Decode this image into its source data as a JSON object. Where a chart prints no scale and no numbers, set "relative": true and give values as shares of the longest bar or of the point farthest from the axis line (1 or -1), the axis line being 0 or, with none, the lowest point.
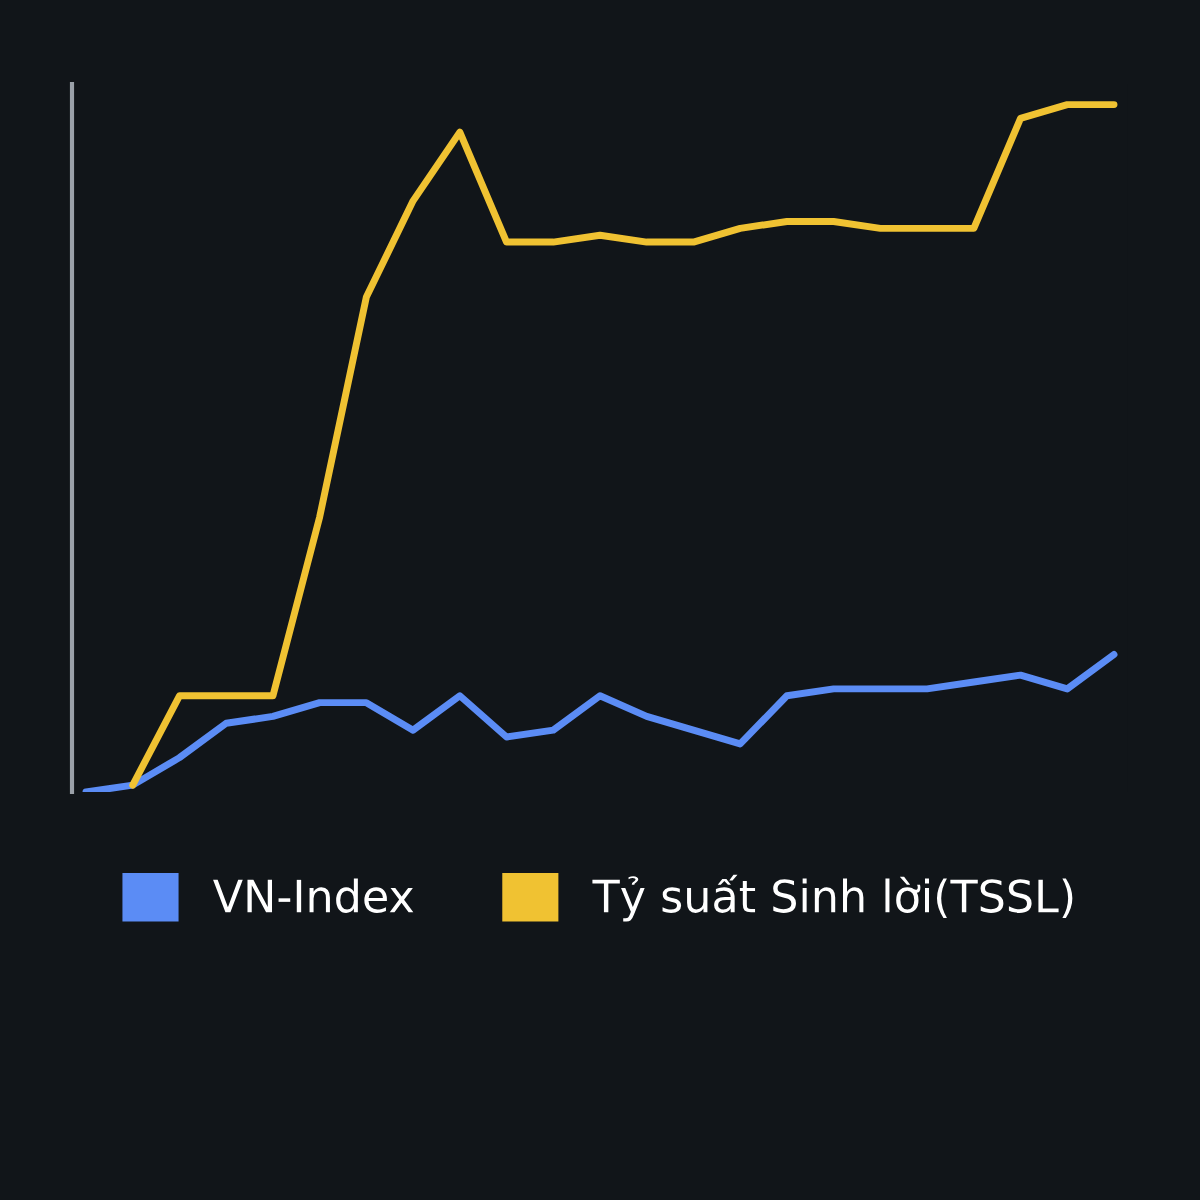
{
  "chart_data": {
    "type": "line",
    "relative": true,
    "categories": [
      null,
      null,
      null,
      null,
      null,
      null,
      null,
      null,
      null,
      null,
      null,
      null,
      null,
      null,
      null,
      null,
      null,
      null,
      null,
      null,
      null,
      null,
      null
    ],
    "series": [
      {
        "name": "VN-Index",
        "color": "#5b8cf5",
        "values": [
          0,
          0.01,
          0.05,
          0.1,
          0.11,
          0.13,
          0.13,
          0.09,
          0.14,
          0.08,
          0.09,
          0.14,
          0.11,
          0.09,
          0.07,
          0.14,
          0.15,
          0.15,
          0.15,
          0.16,
          0.17,
          0.15,
          0.2
        ]
      },
      {
        "name": "Tỷ suất Sinh lời(TSSL)",
        "color": "#f0c232",
        "values": [
          null,
          0.01,
          0.14,
          0.14,
          0.14,
          0.4,
          0.72,
          0.86,
          0.96,
          0.8,
          0.8,
          0.81,
          0.8,
          0.8,
          0.82,
          0.83,
          0.83,
          0.82,
          0.82,
          0.82,
          0.98,
          1.0,
          1.0
        ]
      }
    ],
    "legend": "bottom"
  }
}
